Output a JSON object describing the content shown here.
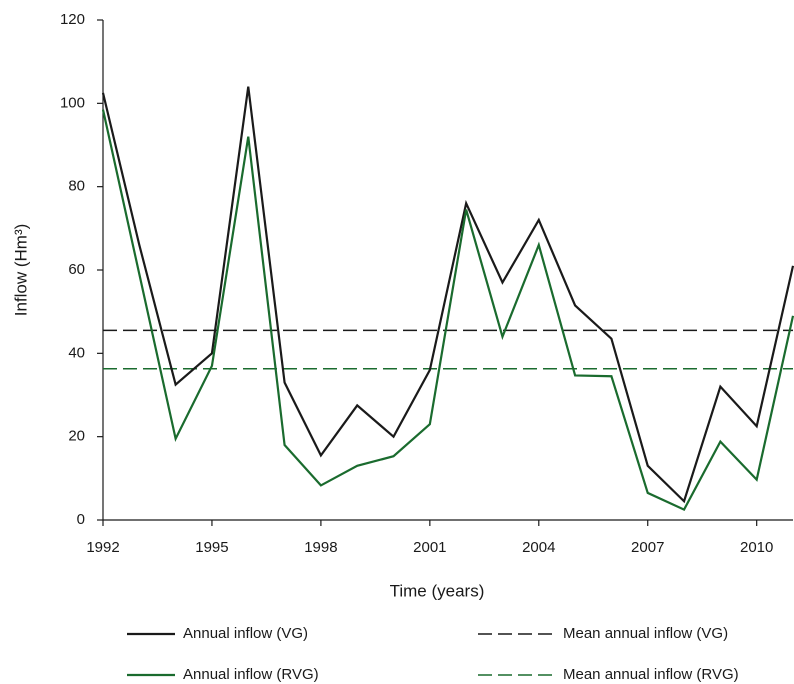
{
  "chart_data": {
    "type": "line",
    "x_label": "Time (years)",
    "y_label": "Inflow (Hm³)",
    "x": [
      1992,
      1993,
      1994,
      1995,
      1996,
      1997,
      1998,
      1999,
      2000,
      2001,
      2002,
      2003,
      2004,
      2005,
      2006,
      2007,
      2008,
      2009,
      2010,
      2011
    ],
    "series": [
      {
        "name": "Annual inflow (VG)",
        "color": "#1a1a1a",
        "values": [
          102.5,
          66,
          32.5,
          40,
          104,
          33,
          15.5,
          27.5,
          20,
          36,
          76,
          57,
          72,
          51.5,
          43.5,
          13,
          4.5,
          32,
          22.5,
          61
        ]
      },
      {
        "name": "Annual inflow (RVG)",
        "color": "#1a6b2e",
        "values": [
          98.5,
          59,
          19.5,
          37,
          92,
          18,
          8.3,
          13,
          15.3,
          23,
          74.5,
          44,
          66,
          34.7,
          34.5,
          6.5,
          2.5,
          18.8,
          9.7,
          49
        ]
      }
    ],
    "reference_lines": [
      {
        "name": "Mean annual inflow (VG)",
        "color": "#1a1a1a",
        "value": 45.5,
        "dashed": true
      },
      {
        "name": "Mean annual inflow (RVG)",
        "color": "#1a6b2e",
        "value": 36.3,
        "dashed": true
      }
    ],
    "xlim": [
      1992,
      2011
    ],
    "xticks": [
      1992,
      1995,
      1998,
      2001,
      2004,
      2007,
      2010
    ],
    "ylim": [
      0,
      120
    ],
    "yticks": [
      0,
      20,
      40,
      60,
      80,
      100,
      120
    ],
    "grid": false
  }
}
